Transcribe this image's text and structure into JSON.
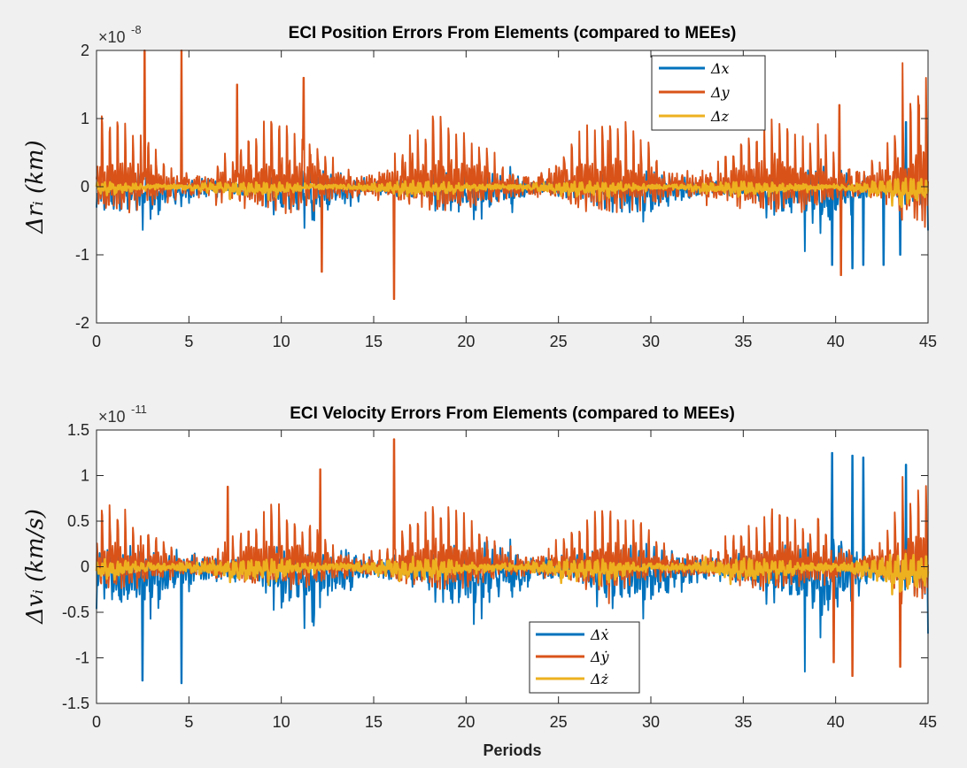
{
  "chart_data": [
    {
      "type": "line",
      "title": "ECI Position Errors From Elements (compared to MEEs)",
      "xlabel": "",
      "ylabel": "Δr_i (km)",
      "ylabel_display": "Δrᵢ (km)",
      "y_multiplier_base": "×10",
      "y_multiplier_exponent": "-8",
      "xlim": [
        0,
        45
      ],
      "ylim": [
        -2,
        2
      ],
      "xticks": [
        0,
        5,
        10,
        15,
        20,
        25,
        30,
        35,
        40,
        45
      ],
      "yticks": [
        -2,
        -1,
        0,
        1,
        2
      ],
      "legend_position": "top-right",
      "series": [
        {
          "name": "Δx",
          "color": "#0072BD",
          "peak_amplitude": 0.55,
          "spikes": [
            [
              39.8,
              -1.15
            ],
            [
              40.9,
              -1.2
            ],
            [
              41.5,
              -1.15
            ],
            [
              42.6,
              -1.15
            ],
            [
              43.5,
              -1.0
            ],
            [
              43.8,
              0.95
            ]
          ]
        },
        {
          "name": "Δy",
          "color": "#D95319",
          "peak_amplitude": 0.85,
          "spikes": [
            [
              2.6,
              2.0
            ],
            [
              4.6,
              2.0
            ],
            [
              7.6,
              1.5
            ],
            [
              11.2,
              1.6
            ],
            [
              12.2,
              -1.25
            ],
            [
              16.1,
              -1.65
            ],
            [
              40.3,
              -1.3
            ],
            [
              40.2,
              1.2
            ],
            [
              44.5,
              1.2
            ]
          ]
        },
        {
          "name": "Δz",
          "color": "#EDB120",
          "peak_amplitude": 0.18,
          "spikes": []
        }
      ]
    },
    {
      "type": "line",
      "title": "ECI Velocity Errors From Elements (compared to MEEs)",
      "xlabel": "Periods",
      "ylabel": "Δv_i (km/s)",
      "ylabel_display": "Δvᵢ (km/s)",
      "y_multiplier_base": "×10",
      "y_multiplier_exponent": "-11",
      "xlim": [
        0,
        45
      ],
      "ylim": [
        -1.5,
        1.5
      ],
      "xticks": [
        0,
        5,
        10,
        15,
        20,
        25,
        30,
        35,
        40,
        45
      ],
      "yticks": [
        -1.5,
        -1,
        -0.5,
        0,
        0.5,
        1,
        1.5
      ],
      "legend_position": "bottom-center",
      "series": [
        {
          "name": "Δẋ",
          "color": "#0072BD",
          "peak_amplitude": 0.6,
          "spikes": [
            [
              2.5,
              -1.25
            ],
            [
              4.6,
              -1.28
            ],
            [
              39.8,
              1.25
            ],
            [
              40.9,
              1.22
            ],
            [
              41.5,
              1.2
            ],
            [
              43.8,
              1.12
            ]
          ]
        },
        {
          "name": "Δẏ",
          "color": "#D95319",
          "peak_amplitude": 0.55,
          "spikes": [
            [
              7.1,
              0.88
            ],
            [
              12.1,
              1.07
            ],
            [
              16.1,
              1.4
            ],
            [
              39.9,
              -1.05
            ],
            [
              40.9,
              -1.2
            ],
            [
              43.5,
              -1.1
            ]
          ]
        },
        {
          "name": "Δż",
          "color": "#EDB120",
          "peak_amplitude": 0.2,
          "spikes": []
        }
      ]
    }
  ]
}
